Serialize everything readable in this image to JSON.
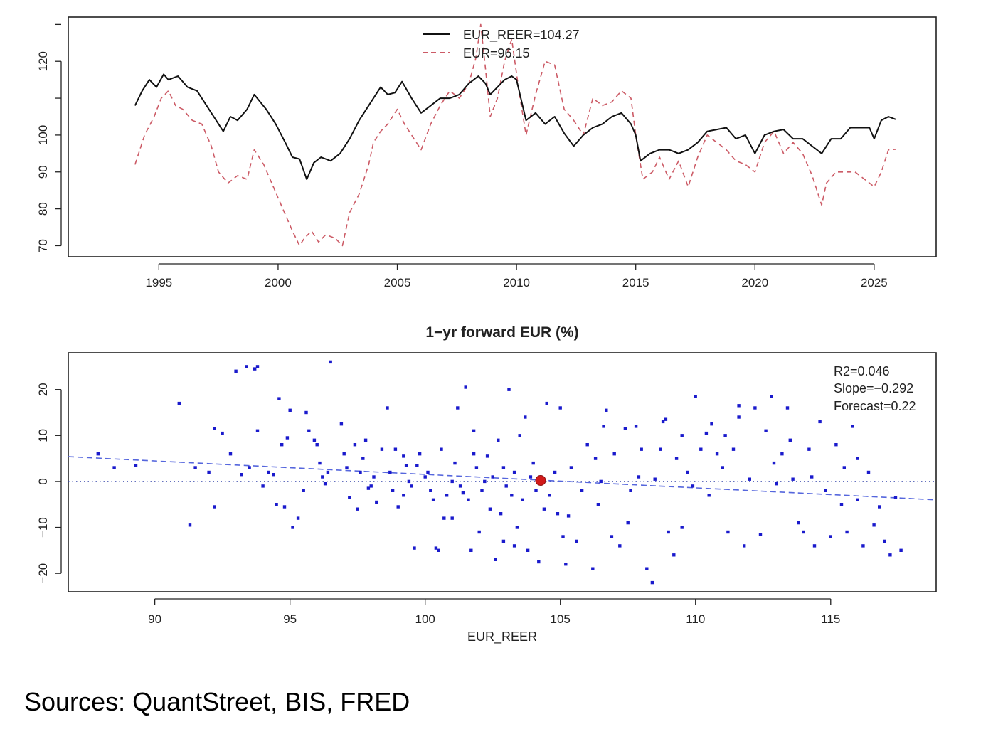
{
  "footer": {
    "sources": "Sources: QuantStreet, BIS, FRED"
  },
  "colors": {
    "reer": "#111111",
    "eur": "#cc5b66",
    "points": "#1a1acc",
    "current": "#d11a1a",
    "fit": "#5566dd",
    "zero": "#3344aa"
  },
  "chart_data": [
    {
      "type": "line",
      "title": "",
      "xlabel": "",
      "ylabel": "",
      "xlim": [
        1991.2,
        2027.6
      ],
      "ylim": [
        67,
        132
      ],
      "x_ticks": [
        1995,
        2000,
        2005,
        2010,
        2015,
        2020,
        2025
      ],
      "y_ticks": [
        70,
        80,
        90,
        100,
        120
      ],
      "grid": false,
      "legend": {
        "placement": "top-center"
      },
      "series": [
        {
          "name": "EUR_REER=104.27",
          "style": "solid",
          "color": "#111111",
          "x": [
            1994.0,
            1994.3,
            1994.6,
            1994.9,
            1995.2,
            1995.4,
            1995.8,
            1996.2,
            1996.6,
            1997.0,
            1997.3,
            1997.7,
            1998.0,
            1998.3,
            1998.7,
            1999.0,
            1999.5,
            1999.9,
            2000.3,
            2000.6,
            2000.9,
            2001.2,
            2001.5,
            2001.8,
            2002.2,
            2002.6,
            2003.0,
            2003.4,
            2003.8,
            2004.0,
            2004.3,
            2004.6,
            2004.9,
            2005.2,
            2005.6,
            2006.0,
            2006.4,
            2006.8,
            2007.2,
            2007.6,
            2008.0,
            2008.4,
            2008.7,
            2008.9,
            2009.2,
            2009.5,
            2009.8,
            2010.0,
            2010.4,
            2010.8,
            2011.2,
            2011.6,
            2012.0,
            2012.4,
            2012.8,
            2013.2,
            2013.6,
            2014.0,
            2014.4,
            2014.8,
            2015.0,
            2015.2,
            2015.6,
            2016.0,
            2016.4,
            2016.8,
            2017.2,
            2017.6,
            2018.0,
            2018.4,
            2018.8,
            2019.2,
            2019.6,
            2020.0,
            2020.4,
            2020.8,
            2021.2,
            2021.6,
            2022.0,
            2022.4,
            2022.8,
            2023.2,
            2023.6,
            2024.0,
            2024.4,
            2024.8,
            2025.0,
            2025.3,
            2025.6,
            2025.9
          ],
          "values": [
            108.0,
            112.0,
            115.0,
            113.0,
            116.5,
            115.0,
            116.0,
            113.0,
            112.0,
            108.0,
            105.0,
            101.0,
            105.0,
            104.0,
            107.0,
            111.0,
            107.0,
            103.0,
            98.0,
            94.0,
            93.5,
            88.0,
            92.5,
            94.0,
            93.0,
            95.0,
            99.0,
            104.0,
            108.0,
            110.0,
            113.0,
            111.0,
            111.5,
            114.5,
            110.0,
            106.0,
            108.0,
            110.0,
            110.0,
            111.0,
            114.0,
            116.0,
            114.0,
            111.0,
            113.0,
            115.0,
            116.0,
            115.0,
            104.0,
            106.0,
            103.0,
            105.0,
            100.5,
            97.0,
            100.0,
            102.0,
            103.0,
            105.0,
            106.0,
            103.0,
            100.0,
            93.0,
            95.0,
            96.0,
            96.0,
            95.0,
            96.0,
            98.0,
            101.0,
            101.5,
            102.0,
            99.0,
            100.0,
            95.0,
            100.0,
            101.0,
            101.5,
            99.0,
            99.0,
            97.0,
            95.0,
            99.0,
            99.0,
            102.0,
            102.0,
            102.0,
            99.0,
            104.0,
            105.0,
            104.27
          ]
        },
        {
          "name": "EUR=96.15",
          "style": "dashed",
          "color": "#cc5b66",
          "x": [
            1994.0,
            1994.4,
            1994.8,
            1995.1,
            1995.4,
            1995.7,
            1996.0,
            1996.4,
            1996.8,
            1997.2,
            1997.5,
            1997.9,
            1998.3,
            1998.7,
            1999.0,
            1999.4,
            1999.8,
            2000.2,
            2000.6,
            2000.9,
            2001.1,
            2001.4,
            2001.7,
            2002.0,
            2002.4,
            2002.7,
            2003.0,
            2003.4,
            2003.8,
            2004.0,
            2004.3,
            2004.6,
            2005.0,
            2005.3,
            2005.7,
            2006.0,
            2006.4,
            2006.8,
            2007.2,
            2007.6,
            2008.0,
            2008.3,
            2008.5,
            2008.7,
            2008.9,
            2009.2,
            2009.5,
            2009.8,
            2010.1,
            2010.4,
            2010.8,
            2011.2,
            2011.6,
            2012.0,
            2012.4,
            2012.8,
            2013.2,
            2013.6,
            2014.0,
            2014.4,
            2014.8,
            2015.0,
            2015.3,
            2015.7,
            2016.0,
            2016.4,
            2016.8,
            2017.2,
            2017.6,
            2018.0,
            2018.4,
            2018.8,
            2019.2,
            2019.6,
            2020.0,
            2020.4,
            2020.8,
            2021.2,
            2021.6,
            2022.0,
            2022.4,
            2022.8,
            2023.0,
            2023.4,
            2023.8,
            2024.2,
            2024.6,
            2025.0,
            2025.3,
            2025.6,
            2025.9
          ],
          "values": [
            92.0,
            100.0,
            105.0,
            110.0,
            112.0,
            108.0,
            107.0,
            104.0,
            103.0,
            97.0,
            90.0,
            87.0,
            89.0,
            88.0,
            96.0,
            92.0,
            86.0,
            80.0,
            74.0,
            70.0,
            72.0,
            74.0,
            71.0,
            73.0,
            72.0,
            70.0,
            79.0,
            84.0,
            92.0,
            98.0,
            101.0,
            103.0,
            107.0,
            103.0,
            99.0,
            96.0,
            103.0,
            108.0,
            112.0,
            110.0,
            114.0,
            121.0,
            130.0,
            118.0,
            105.0,
            110.0,
            120.0,
            126.0,
            112.0,
            100.0,
            111.0,
            120.0,
            119.0,
            107.0,
            104.0,
            100.0,
            110.0,
            108.0,
            109.0,
            112.0,
            110.0,
            100.0,
            88.0,
            90.0,
            94.0,
            88.0,
            93.0,
            86.0,
            94.0,
            100.0,
            98.0,
            96.0,
            93.0,
            92.0,
            90.0,
            98.0,
            101.0,
            95.0,
            98.0,
            95.0,
            89.0,
            81.0,
            87.0,
            90.0,
            90.0,
            90.0,
            88.0,
            86.0,
            90.0,
            96.0,
            96.15
          ]
        }
      ]
    },
    {
      "type": "scatter",
      "title": "1−yr forward EUR (%)",
      "xlabel": "EUR_REER",
      "ylabel": "",
      "xlim": [
        86.8,
        118.9
      ],
      "ylim": [
        -24,
        28
      ],
      "x_ticks": [
        90,
        95,
        100,
        105,
        110,
        115
      ],
      "y_ticks": [
        -20,
        -10,
        0,
        10,
        20
      ],
      "grid": false,
      "annotations": [
        "R2=0.046",
        "Slope=−0.292",
        "Forecast=0.22"
      ],
      "annotation_placement": "top-right",
      "zero_line": 0,
      "fit_line": {
        "x": [
          86.8,
          118.9
        ],
        "y": [
          5.4,
          -4.0
        ]
      },
      "current_point": {
        "x": 104.27,
        "y": 0.22
      },
      "points": [
        [
          87.9,
          6
        ],
        [
          88.5,
          3
        ],
        [
          89.3,
          3.5
        ],
        [
          90.9,
          17
        ],
        [
          91.3,
          -9.5
        ],
        [
          91.5,
          3
        ],
        [
          92.0,
          2
        ],
        [
          92.2,
          11.5
        ],
        [
          92.2,
          -5.5
        ],
        [
          92.5,
          10.5
        ],
        [
          92.8,
          6
        ],
        [
          93.0,
          24
        ],
        [
          93.4,
          25
        ],
        [
          93.7,
          24.5
        ],
        [
          93.8,
          25
        ],
        [
          93.2,
          1.5
        ],
        [
          93.5,
          3
        ],
        [
          93.8,
          11
        ],
        [
          94.0,
          -1
        ],
        [
          94.2,
          2
        ],
        [
          94.4,
          1.5
        ],
        [
          94.5,
          -5
        ],
        [
          94.8,
          -5.5
        ],
        [
          95.0,
          15.5
        ],
        [
          94.6,
          18
        ],
        [
          94.7,
          8
        ],
        [
          94.9,
          9.5
        ],
        [
          95.1,
          -10
        ],
        [
          95.3,
          -8
        ],
        [
          95.5,
          -2
        ],
        [
          95.6,
          15
        ],
        [
          95.7,
          11
        ],
        [
          95.9,
          9
        ],
        [
          96.0,
          8
        ],
        [
          96.2,
          1
        ],
        [
          96.3,
          -0.5
        ],
        [
          96.4,
          2
        ],
        [
          96.5,
          26
        ],
        [
          96.9,
          12.5
        ],
        [
          97.0,
          6
        ],
        [
          97.1,
          3
        ],
        [
          97.2,
          -3.5
        ],
        [
          97.4,
          8
        ],
        [
          97.6,
          2
        ],
        [
          97.7,
          5
        ],
        [
          97.8,
          9
        ],
        [
          98.0,
          -1
        ],
        [
          98.1,
          1
        ],
        [
          98.2,
          -4.5
        ],
        [
          98.4,
          7
        ],
        [
          98.6,
          16
        ],
        [
          98.7,
          2
        ],
        [
          98.8,
          -2
        ],
        [
          99.0,
          -5.5
        ],
        [
          99.2,
          5.5
        ],
        [
          99.3,
          3.5
        ],
        [
          99.4,
          0
        ],
        [
          99.5,
          -1
        ],
        [
          99.6,
          -14.5
        ],
        [
          99.7,
          3.5
        ],
        [
          99.8,
          6
        ],
        [
          100.0,
          1
        ],
        [
          100.1,
          2
        ],
        [
          100.2,
          -2
        ],
        [
          100.4,
          -14.5
        ],
        [
          100.5,
          -15
        ],
        [
          100.6,
          7
        ],
        [
          100.7,
          -8
        ],
        [
          100.8,
          -3
        ],
        [
          101.0,
          0
        ],
        [
          101.1,
          4
        ],
        [
          101.2,
          16
        ],
        [
          101.3,
          -1
        ],
        [
          101.4,
          -2.5
        ],
        [
          101.5,
          20.5
        ],
        [
          101.6,
          -4
        ],
        [
          101.7,
          -15
        ],
        [
          101.8,
          6
        ],
        [
          101.9,
          3
        ],
        [
          102.0,
          -11
        ],
        [
          102.1,
          -2
        ],
        [
          102.2,
          0
        ],
        [
          102.3,
          5.5
        ],
        [
          102.4,
          -6
        ],
        [
          102.5,
          1
        ],
        [
          102.6,
          -17
        ],
        [
          102.7,
          9
        ],
        [
          102.8,
          -7
        ],
        [
          102.9,
          3
        ],
        [
          103.0,
          -1
        ],
        [
          103.1,
          20
        ],
        [
          103.2,
          -3
        ],
        [
          103.3,
          2
        ],
        [
          103.4,
          -10
        ],
        [
          103.5,
          10
        ],
        [
          103.6,
          -4
        ],
        [
          103.7,
          14
        ],
        [
          103.8,
          -15
        ],
        [
          103.9,
          1
        ],
        [
          104.0,
          4
        ],
        [
          104.1,
          -2
        ],
        [
          104.2,
          -17.5
        ],
        [
          104.4,
          -6
        ],
        [
          104.5,
          17
        ],
        [
          104.6,
          -3
        ],
        [
          104.8,
          2
        ],
        [
          105.0,
          16
        ],
        [
          105.2,
          -18
        ],
        [
          105.3,
          -7.5
        ],
        [
          105.4,
          3
        ],
        [
          105.6,
          -13
        ],
        [
          105.8,
          -2
        ],
        [
          106.0,
          8
        ],
        [
          106.2,
          -19
        ],
        [
          106.4,
          -5
        ],
        [
          106.5,
          0
        ],
        [
          106.7,
          15.5
        ],
        [
          106.9,
          -12
        ],
        [
          107.0,
          6
        ],
        [
          107.2,
          -14
        ],
        [
          107.4,
          11.5
        ],
        [
          107.5,
          -9
        ],
        [
          107.6,
          -2
        ],
        [
          107.8,
          12
        ],
        [
          108.0,
          7
        ],
        [
          108.2,
          -19
        ],
        [
          108.4,
          -22
        ],
        [
          108.5,
          0.5
        ],
        [
          108.7,
          7
        ],
        [
          108.8,
          13
        ],
        [
          109.0,
          -11
        ],
        [
          109.2,
          -16
        ],
        [
          109.3,
          5
        ],
        [
          109.5,
          10
        ],
        [
          109.7,
          2
        ],
        [
          109.9,
          -1
        ],
        [
          110.0,
          18.5
        ],
        [
          110.2,
          7
        ],
        [
          110.4,
          10.5
        ],
        [
          110.6,
          12.5
        ],
        [
          110.8,
          6
        ],
        [
          111.0,
          3
        ],
        [
          111.2,
          -11
        ],
        [
          111.4,
          7
        ],
        [
          111.6,
          14
        ],
        [
          111.8,
          -14
        ],
        [
          112.0,
          0.5
        ],
        [
          112.2,
          16
        ],
        [
          112.4,
          -11.5
        ],
        [
          112.6,
          11
        ],
        [
          112.8,
          18.5
        ],
        [
          113.0,
          -0.5
        ],
        [
          113.2,
          6
        ],
        [
          113.4,
          16
        ],
        [
          113.6,
          0.5
        ],
        [
          113.8,
          -9
        ],
        [
          114.0,
          -11
        ],
        [
          114.2,
          7
        ],
        [
          114.4,
          -14
        ],
        [
          114.6,
          13
        ],
        [
          114.8,
          -2
        ],
        [
          115.0,
          -12
        ],
        [
          115.2,
          8
        ],
        [
          115.4,
          -5
        ],
        [
          115.6,
          -11
        ],
        [
          115.8,
          12
        ],
        [
          116.0,
          -4
        ],
        [
          116.2,
          -14
        ],
        [
          116.4,
          2
        ],
        [
          116.6,
          -9.5
        ],
        [
          116.8,
          -5.5
        ],
        [
          117.0,
          -13
        ],
        [
          117.2,
          -16
        ],
        [
          117.4,
          -3.5
        ],
        [
          117.6,
          -15
        ],
        [
          111.1,
          10
        ],
        [
          109.5,
          -10
        ],
        [
          107.9,
          1
        ],
        [
          106.3,
          5
        ],
        [
          104.9,
          -7
        ],
        [
          103.3,
          -14
        ],
        [
          101.8,
          11
        ],
        [
          100.3,
          -4
        ],
        [
          98.9,
          7
        ],
        [
          97.5,
          -6
        ],
        [
          96.1,
          4
        ],
        [
          110.5,
          -3
        ],
        [
          112.9,
          4
        ],
        [
          114.3,
          1
        ],
        [
          115.5,
          3
        ],
        [
          116.0,
          5
        ],
        [
          113.5,
          9
        ],
        [
          111.6,
          16.5
        ],
        [
          108.9,
          13.5
        ],
        [
          106.6,
          12
        ],
        [
          105.1,
          -12
        ],
        [
          102.9,
          -13
        ],
        [
          101.0,
          -8
        ],
        [
          99.2,
          -3
        ],
        [
          97.9,
          -1.5
        ]
      ]
    }
  ]
}
